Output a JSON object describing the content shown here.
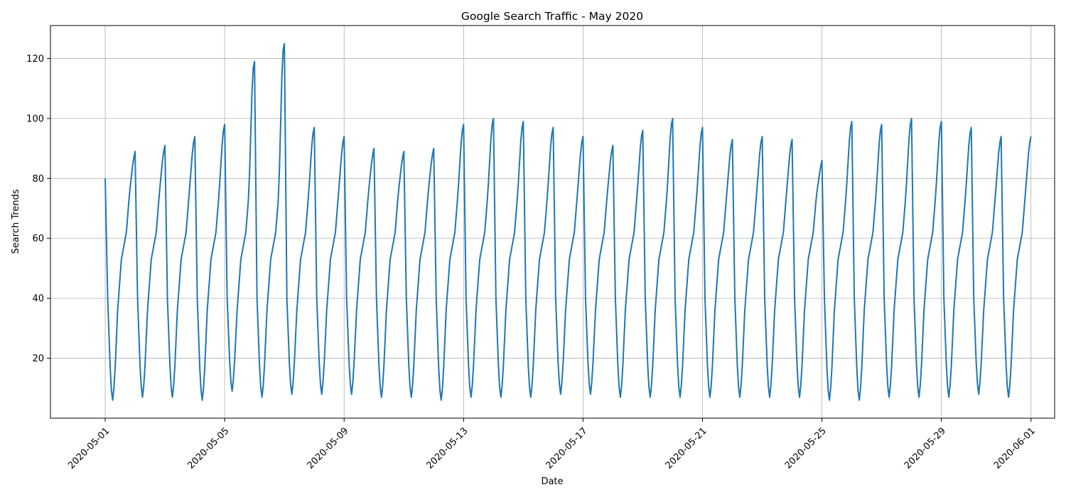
{
  "chart_data": {
    "type": "line",
    "title": "Google Search Traffic - May 2020",
    "xlabel": "Date",
    "ylabel": "Search Trends",
    "x_start": "2020-05-01",
    "x_end": "2020-06-01",
    "xlim": [
      "2020-04-29 04:00",
      "2020-06-01 19:00"
    ],
    "ylim": [
      0,
      131
    ],
    "x_ticks": [
      "2020-05-01",
      "2020-05-05",
      "2020-05-09",
      "2020-05-13",
      "2020-05-17",
      "2020-05-21",
      "2020-05-25",
      "2020-05-29",
      "2020-06-01"
    ],
    "y_ticks": [
      20,
      40,
      60,
      80,
      100,
      120
    ],
    "grid": true,
    "color": "#1f77b4",
    "series": [
      {
        "frequency": "hourly",
        "daily_profile": [
          {
            "date": "2020-05-01",
            "peak": 89,
            "start": 80,
            "trough": 6
          },
          {
            "date": "2020-05-02",
            "peak": 91,
            "trough": 7
          },
          {
            "date": "2020-05-03",
            "peak": 94,
            "trough": 7
          },
          {
            "date": "2020-05-04",
            "peak": 98,
            "trough": 6
          },
          {
            "date": "2020-05-05",
            "peak": 119,
            "trough": 9
          },
          {
            "date": "2020-05-06",
            "peak": 125,
            "trough": 7
          },
          {
            "date": "2020-05-07",
            "peak": 97,
            "trough": 8
          },
          {
            "date": "2020-05-08",
            "peak": 94,
            "trough": 8
          },
          {
            "date": "2020-05-09",
            "peak": 90,
            "trough": 8
          },
          {
            "date": "2020-05-10",
            "peak": 89,
            "trough": 7
          },
          {
            "date": "2020-05-11",
            "peak": 90,
            "trough": 7
          },
          {
            "date": "2020-05-12",
            "peak": 98,
            "trough": 6
          },
          {
            "date": "2020-05-13",
            "peak": 100,
            "trough": 7
          },
          {
            "date": "2020-05-14",
            "peak": 99,
            "trough": 7
          },
          {
            "date": "2020-05-15",
            "peak": 97,
            "trough": 7
          },
          {
            "date": "2020-05-16",
            "peak": 94,
            "trough": 8
          },
          {
            "date": "2020-05-17",
            "peak": 91,
            "trough": 8
          },
          {
            "date": "2020-05-18",
            "peak": 96,
            "trough": 7
          },
          {
            "date": "2020-05-19",
            "peak": 100,
            "trough": 7
          },
          {
            "date": "2020-05-20",
            "peak": 97,
            "trough": 7
          },
          {
            "date": "2020-05-21",
            "peak": 93,
            "trough": 7
          },
          {
            "date": "2020-05-22",
            "peak": 94,
            "trough": 7
          },
          {
            "date": "2020-05-23",
            "peak": 93,
            "trough": 7
          },
          {
            "date": "2020-05-24",
            "peak": 86,
            "trough": 7
          },
          {
            "date": "2020-05-25",
            "peak": 99,
            "trough": 6
          },
          {
            "date": "2020-05-26",
            "peak": 98,
            "trough": 6
          },
          {
            "date": "2020-05-27",
            "peak": 100,
            "trough": 7
          },
          {
            "date": "2020-05-28",
            "peak": 99,
            "trough": 7
          },
          {
            "date": "2020-05-29",
            "peak": 97,
            "trough": 7
          },
          {
            "date": "2020-05-30",
            "peak": 94,
            "trough": 8
          },
          {
            "date": "2020-05-31",
            "peak": 94,
            "trough": 7
          },
          {
            "date": "2020-06-01",
            "end": 96
          }
        ]
      }
    ]
  }
}
